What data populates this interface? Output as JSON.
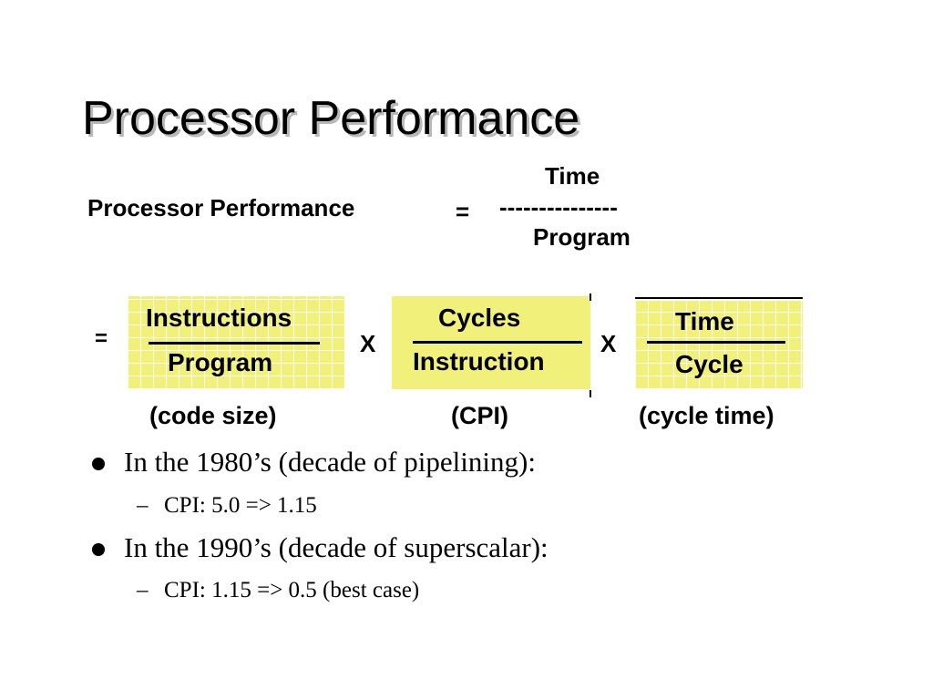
{
  "slide": {
    "title": "Processor Performance"
  },
  "equation": {
    "lhs": "Processor Performance",
    "equals": "=",
    "numerator": "Time",
    "bar": "---------------",
    "denominator": "Program"
  },
  "breakdown": {
    "equals": "=",
    "times_1": "X",
    "times_2": "X",
    "fractions": [
      {
        "numerator": "Instructions",
        "denominator": "Program",
        "label": "(code size)"
      },
      {
        "numerator": "Cycles",
        "denominator": "Instruction",
        "label": "(CPI)"
      },
      {
        "numerator": "Time",
        "denominator": "Cycle",
        "label": "(cycle time)"
      }
    ],
    "highlight_color": "#f0f07a"
  },
  "bullets": [
    {
      "text": "In the 1980’s (decade of pipelining):",
      "sub": "CPI: 5.0 => 1.15"
    },
    {
      "text": "In the 1990’s (decade of superscalar):",
      "sub": "CPI: 1.15 => 0.5 (best case)"
    }
  ],
  "sub_marker": "–"
}
